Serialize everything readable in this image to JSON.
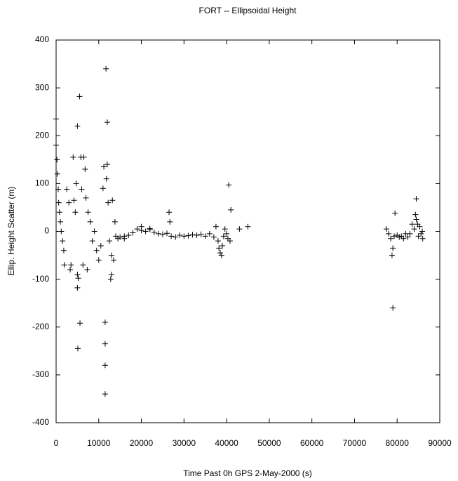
{
  "chart_data": {
    "type": "scatter",
    "title": "FORT -- Ellipsoidal Height",
    "xlabel": "Time Past 0h GPS 2-May-2000  (s)",
    "ylabel": "Ellip. Height Scatter  (m)",
    "color": "#000000",
    "marker": "+",
    "xlim": [
      0,
      90000
    ],
    "xticks": [
      0,
      10000,
      20000,
      30000,
      40000,
      50000,
      60000,
      70000,
      80000,
      90000
    ],
    "ylim": [
      -400,
      400
    ],
    "yticks": [
      -400,
      -300,
      -200,
      -100,
      0,
      100,
      200,
      300,
      400
    ],
    "x": [
      0,
      0,
      200,
      300,
      500,
      600,
      800,
      1000,
      1200,
      1500,
      1800,
      1900,
      2500,
      3000,
      3300,
      3500,
      4000,
      4200,
      4500,
      4700,
      5000,
      5000,
      5000,
      5100,
      5200,
      5500,
      5600,
      5800,
      6000,
      6300,
      6500,
      6800,
      7000,
      7300,
      7500,
      8000,
      8500,
      9000,
      9500,
      10000,
      10500,
      11000,
      11200,
      11500,
      11500,
      11500,
      11500,
      11700,
      11800,
      12000,
      12000,
      12200,
      12500,
      12800,
      13000,
      13200,
      13500,
      13800,
      14000,
      14500,
      15000,
      16000,
      17000,
      18000,
      19000,
      20000,
      21000,
      22000,
      23000,
      24000,
      25000,
      26000,
      26500,
      26700,
      27000,
      28000,
      29000,
      30000,
      31000,
      32000,
      33000,
      34000,
      35000,
      36000,
      37000,
      37500,
      38000,
      38200,
      38500,
      38800,
      39000,
      39300,
      39600,
      40000,
      40300,
      40500,
      40800,
      41000,
      43000,
      45000,
      77500,
      78000,
      78500,
      78800,
      79000,
      79000,
      79300,
      79500,
      80000,
      80500,
      81000,
      81500,
      82000,
      82500,
      83000,
      83500,
      84000,
      84300,
      84500,
      84500,
      84800,
      85000,
      85300,
      85600,
      85900,
      86000,
      13000,
      16000,
      20000,
      22000
    ],
    "values": [
      235,
      180,
      150,
      120,
      88,
      60,
      40,
      20,
      0,
      -20,
      -40,
      -70,
      88,
      60,
      -80,
      -70,
      155,
      65,
      40,
      100,
      220,
      -90,
      -118,
      -245,
      -98,
      282,
      -192,
      155,
      88,
      -70,
      155,
      130,
      70,
      -80,
      40,
      20,
      -20,
      0,
      -40,
      -60,
      -30,
      90,
      135,
      -190,
      -235,
      -280,
      -340,
      340,
      110,
      228,
      140,
      60,
      -20,
      -100,
      -90,
      65,
      -60,
      20,
      -10,
      -15,
      -12,
      -10,
      -8,
      -3,
      5,
      2,
      0,
      4,
      -2,
      -5,
      -6,
      -4,
      40,
      20,
      -10,
      -12,
      -8,
      -10,
      -9,
      -7,
      -8,
      -6,
      -10,
      -5,
      -12,
      10,
      -20,
      -35,
      -45,
      -50,
      -30,
      -10,
      5,
      -5,
      -15,
      97,
      -20,
      45,
      5,
      10,
      5,
      -5,
      -15,
      -50,
      -160,
      -35,
      -10,
      38,
      -8,
      -12,
      -10,
      -15,
      -5,
      -12,
      -5,
      15,
      5,
      35,
      68,
      25,
      15,
      -10,
      10,
      -5,
      0,
      -15,
      -50,
      -15,
      10,
      6
    ]
  }
}
